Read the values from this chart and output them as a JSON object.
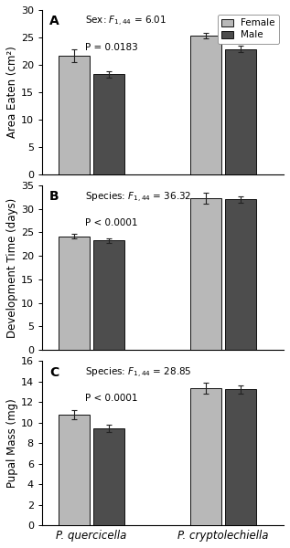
{
  "panels": [
    {
      "label": "A",
      "ylabel": "Area Eaten (cm²)",
      "ylim": [
        0,
        30
      ],
      "yticks": [
        0,
        5,
        10,
        15,
        20,
        25,
        30
      ],
      "line1": "Sex: $F_{1,44}$ = 6.01",
      "line2": "P = 0.0183",
      "values": [
        21.7,
        18.3,
        25.3,
        22.9
      ],
      "errors": [
        1.2,
        0.6,
        0.5,
        0.65
      ]
    },
    {
      "label": "B",
      "ylabel": "Development Time (days)",
      "ylim": [
        0,
        35
      ],
      "yticks": [
        0,
        5,
        10,
        15,
        20,
        25,
        30,
        35
      ],
      "line1": "Species: $F_{1,44}$ = 36.32",
      "line2": "P < 0.0001",
      "values": [
        24.2,
        23.3,
        32.3,
        32.0
      ],
      "errors": [
        0.5,
        0.5,
        1.2,
        0.6
      ]
    },
    {
      "label": "C",
      "ylabel": "Pupal Mass (mg)",
      "ylim": [
        0,
        16
      ],
      "yticks": [
        0,
        2,
        4,
        6,
        8,
        10,
        12,
        14,
        16
      ],
      "line1": "Species: $F_{1,44}$ = 28.85",
      "line2": "P < 0.0001",
      "values": [
        10.75,
        9.4,
        13.35,
        13.25
      ],
      "errors": [
        0.45,
        0.35,
        0.5,
        0.4
      ]
    }
  ],
  "species_labels": [
    "P. quercicella",
    "P. cryptolechiella"
  ],
  "bar_width": 0.28,
  "female_color": "#b8b8b8",
  "male_color": "#4d4d4d",
  "edge_color": "#111111",
  "label_fontsize": 8.5,
  "tick_fontsize": 8,
  "stat_fontsize": 7.5,
  "panel_label_fontsize": 10
}
